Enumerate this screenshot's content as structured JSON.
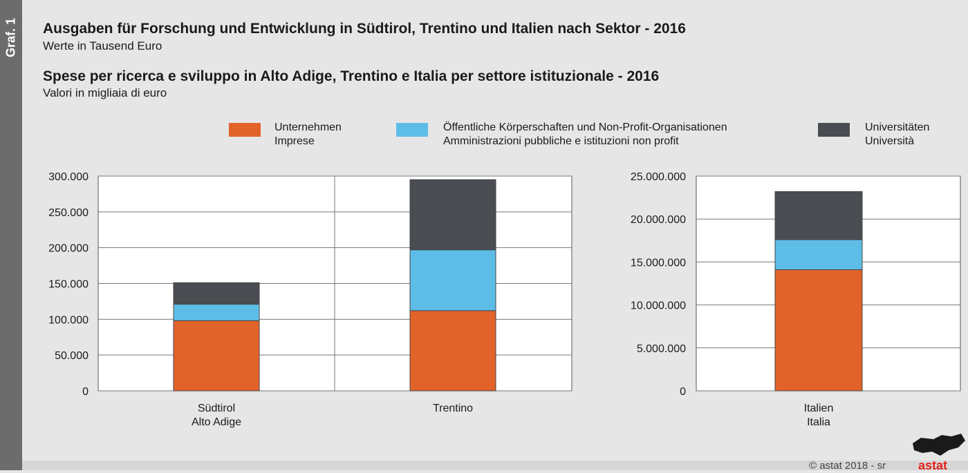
{
  "side_label": "Graf. 1",
  "title_de": "Ausgaben für Forschung und Entwicklung in Südtirol, Trentino und Italien nach Sektor - 2016",
  "subtitle_de": "Werte in Tausend Euro",
  "title_it": "Spese per ricerca e sviluppo in Alto Adige, Trentino e Italia per settore istituzionale - 2016",
  "subtitle_it": "Valori in migliaia di euro",
  "legend": [
    {
      "line1": "Unternehmen",
      "line2": "Imprese",
      "color": "#e2632a"
    },
    {
      "line1": "Öffentliche Körperschaften und Non-Profit-Organisationen",
      "line2": "Amministrazioni pubbliche e istituzioni non profit",
      "color": "#5ebde6"
    },
    {
      "line1": "Universitäten",
      "line2": "Università",
      "color": "#494d52"
    }
  ],
  "footer": {
    "copyright": "©  astat 2018 - sr",
    "logo": "astat"
  },
  "chart_data": [
    {
      "type": "bar",
      "stacked": true,
      "categories": [
        "Südtirol\nAlto Adige",
        "Trentino"
      ],
      "yticks": [
        "0",
        "50.000",
        "100.000",
        "150.000",
        "200.000",
        "250.000",
        "300.000"
      ],
      "ylim": [
        0,
        300000
      ],
      "series": [
        {
          "name": "Unternehmen / Imprese",
          "values": [
            98000,
            112000
          ]
        },
        {
          "name": "Öffentliche Körperschaften und Non-Profit-Organisationen / Amministrazioni pubbliche e istituzioni non profit",
          "values": [
            23000,
            85000
          ]
        },
        {
          "name": "Universitäten / Università",
          "values": [
            30000,
            98000
          ]
        }
      ]
    },
    {
      "type": "bar",
      "stacked": true,
      "categories": [
        "Italien\nItalia"
      ],
      "yticks": [
        "0",
        "5.000.000",
        "10.000.000",
        "15.000.000",
        "20.000.000",
        "25.000.000"
      ],
      "ylim": [
        0,
        25000000
      ],
      "series": [
        {
          "name": "Unternehmen / Imprese",
          "values": [
            14100000
          ]
        },
        {
          "name": "Öffentliche Körperschaften und Non-Profit-Organisationen / Amministrazioni pubbliche e istituzioni non profit",
          "values": [
            3500000
          ]
        },
        {
          "name": "Universitäten / Università",
          "values": [
            5600000
          ]
        }
      ]
    }
  ]
}
